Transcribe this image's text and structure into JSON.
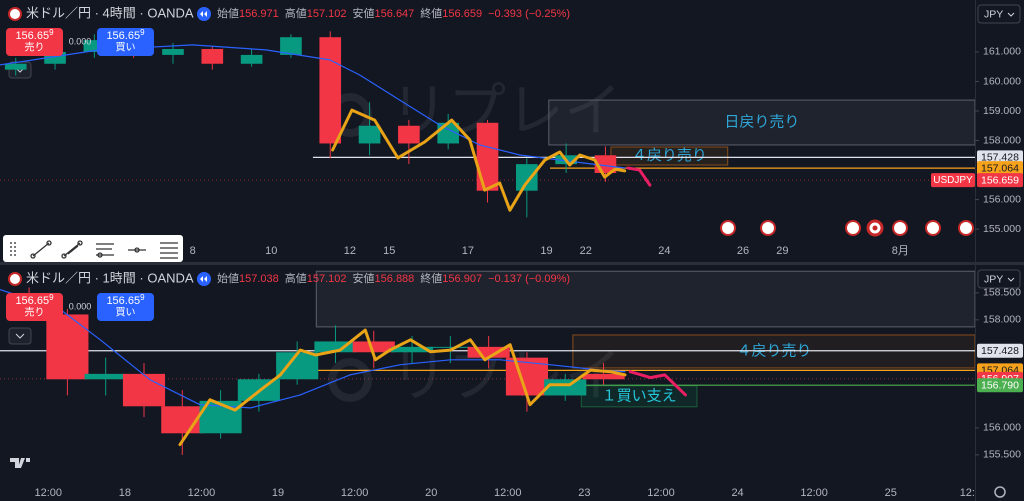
{
  "chart_data": [
    {
      "type": "candlestick",
      "symbol": "米ドル／円 · 4時間 · OANDA",
      "ohlc": [
        {
          "label": "始値",
          "value": 156.971
        },
        {
          "label": "高値",
          "value": 157.102
        },
        {
          "label": "安値",
          "value": 156.647
        },
        {
          "label": "終値",
          "value": 156.659
        }
      ],
      "change": "−0.393 (−0.25%)",
      "sell": {
        "price": "156.65",
        "sup": "9",
        "label": "売り"
      },
      "spread": "0.000",
      "buy": {
        "price": "156.65",
        "sup": "9",
        "label": "買い"
      },
      "currency": "JPY",
      "watermark": "リプレイ",
      "xlim": [
        -4.9,
        19.9
      ],
      "ylim": [
        154.63,
        162.76
      ],
      "xticks": [
        {
          "value": 0,
          "label": "8"
        },
        {
          "value": 2,
          "label": "10"
        },
        {
          "value": 4,
          "label": "12"
        },
        {
          "value": 5,
          "label": "15"
        },
        {
          "value": 7,
          "label": "17"
        },
        {
          "value": 9,
          "label": "19"
        },
        {
          "value": 10,
          "label": "22"
        },
        {
          "value": 12,
          "label": "24"
        },
        {
          "value": 14,
          "label": "26"
        },
        {
          "value": 15,
          "label": "29"
        },
        {
          "value": 18,
          "label": "8月"
        }
      ],
      "yticks": [
        {
          "value": 155,
          "label": "155.000"
        },
        {
          "value": 156,
          "label": "156.000"
        },
        {
          "value": 158,
          "label": "158.000"
        },
        {
          "value": 159,
          "label": "159.000"
        },
        {
          "value": 160,
          "label": "160.000"
        },
        {
          "value": 161,
          "label": "161.000"
        }
      ],
      "grid": false,
      "up_color": "#089981",
      "down_color": "#f23645",
      "candles": {
        "x": [
          -4.5,
          -3.5,
          -2.5,
          -1.5,
          -0.5,
          0.5,
          1.5,
          2.5,
          3.5,
          4.5,
          5.5,
          6.5,
          7.5,
          8.5,
          9.5,
          10.5
        ],
        "open": [
          160.4,
          160.6,
          161.0,
          161.4,
          160.9,
          161.1,
          160.6,
          160.9,
          161.5,
          157.9,
          158.5,
          157.9,
          158.6,
          156.3,
          157.2,
          157.5
        ],
        "high": [
          160.8,
          161.2,
          161.6,
          161.5,
          161.3,
          161.2,
          161.1,
          161.6,
          161.7,
          159.3,
          158.7,
          158.9,
          158.7,
          157.4,
          157.9,
          157.8
        ],
        "low": [
          160.2,
          160.4,
          160.8,
          160.8,
          160.6,
          160.4,
          160.5,
          160.8,
          157.4,
          157.5,
          157.2,
          157.7,
          155.9,
          155.4,
          156.9,
          156.6
        ],
        "close": [
          160.6,
          161.0,
          161.4,
          160.9,
          161.1,
          160.6,
          160.9,
          161.5,
          157.9,
          158.5,
          157.9,
          158.6,
          156.3,
          157.2,
          157.5,
          156.9
        ]
      },
      "series": [
        {
          "color": "#2962ff",
          "width": 1.2,
          "x": [
            -4.91,
            -2.37,
            0,
            1.86,
            3.49,
            4.25,
            5.27,
            6.28,
            7.3,
            8.32,
            9.34,
            10.36,
            10.99
          ],
          "values": [
            160.56,
            161.07,
            161.24,
            161.07,
            160.73,
            160.22,
            159.37,
            158.53,
            157.85,
            157.51,
            157.34,
            157.17,
            157.07
          ]
        },
        {
          "color": "#e8a317",
          "width": 3,
          "x": [
            3.56,
            4.05,
            4.63,
            5.22,
            5.9,
            6.59,
            7.05,
            7.43,
            7.81,
            8.07,
            8.45,
            8.96,
            9.34,
            9.59,
            9.85,
            10.23,
            10.48,
            10.74,
            10.99
          ],
          "values": [
            157.68,
            159.03,
            158.69,
            157.41,
            157.95,
            158.69,
            158.02,
            156.32,
            156.56,
            155.64,
            156.49,
            157.34,
            157.61,
            157.17,
            157.51,
            157.34,
            156.76,
            157.03,
            156.97
          ]
        },
        {
          "color": "#e91e63",
          "width": 3,
          "x": [
            11.07,
            11.37,
            11.63
          ],
          "values": [
            157.07,
            157.0,
            156.49
          ]
        }
      ],
      "zones": [
        {
          "x": [
            9.06,
            19.9
          ],
          "y": [
            157.85,
            159.37
          ],
          "label": "日戻り売り",
          "stroke": "#5d606b",
          "fill": "rgba(120,123,134,0.12)",
          "text_color": "#2ea6d8"
        },
        {
          "x": [
            10.64,
            13.61
          ],
          "y": [
            157.17,
            157.78
          ],
          "label": "４戻り売り",
          "stroke": "#8a4d1a",
          "fill": "rgba(255,152,0,0.08)",
          "text_color": "#2ea6d8"
        }
      ],
      "levels": [
        {
          "value": 157.428,
          "label": "157.428",
          "color": "#e0e3eb",
          "text_color": "#131722",
          "from": 3.06
        },
        {
          "value": 157.064,
          "label": "157.064",
          "color": "#f7a21b",
          "text_color": "#131722",
          "from": 9.09
        },
        {
          "value": 156.659,
          "label": "156.659",
          "color": "#f23645",
          "text_color": "#ffffff",
          "from": -4.9,
          "dashed": true,
          "tag": "USDJPY"
        }
      ]
    },
    {
      "type": "candlestick",
      "symbol": "米ドル／円 · 1時間 · OANDA",
      "ohlc": [
        {
          "label": "始値",
          "value": 157.038
        },
        {
          "label": "高値",
          "value": 157.102
        },
        {
          "label": "安値",
          "value": 156.888
        },
        {
          "label": "終値",
          "value": 156.907
        }
      ],
      "change": "−0.137 (−0.09%)",
      "sell": {
        "price": "156.65",
        "sup": "9",
        "label": "売り"
      },
      "spread": "0.000",
      "buy": {
        "price": "156.65",
        "sup": "9",
        "label": "買い"
      },
      "currency": "JPY",
      "watermark": "リプレイ",
      "xlim": [
        -0.63,
        12.1
      ],
      "ylim": [
        154.85,
        158.96
      ],
      "xticks": [
        {
          "value": 0,
          "label": "12:00"
        },
        {
          "value": 1,
          "label": "18"
        },
        {
          "value": 2,
          "label": "12:00"
        },
        {
          "value": 3,
          "label": "19"
        },
        {
          "value": 4,
          "label": "12:00"
        },
        {
          "value": 5,
          "label": "20"
        },
        {
          "value": 6,
          "label": "12:00"
        },
        {
          "value": 7,
          "label": "23"
        },
        {
          "value": 8,
          "label": "12:00"
        },
        {
          "value": 9,
          "label": "24"
        },
        {
          "value": 10,
          "label": "12:00"
        },
        {
          "value": 11,
          "label": "25"
        },
        {
          "value": 12,
          "label": "12:"
        }
      ],
      "yticks": [
        {
          "value": 155.5,
          "label": "155.500"
        },
        {
          "value": 156,
          "label": "156.000"
        },
        {
          "value": 158,
          "label": "158.000"
        },
        {
          "value": 158.5,
          "label": "158.500"
        }
      ],
      "grid": false,
      "up_color": "#089981",
      "down_color": "#f23645",
      "candles": {
        "x": [
          -0.25,
          0.25,
          0.75,
          1.25,
          1.75,
          2.25,
          2.75,
          3.25,
          3.75,
          4.25,
          4.75,
          5.25,
          5.75,
          6.25,
          6.75,
          7.25
        ],
        "open": [
          158.3,
          158.1,
          156.9,
          157.0,
          156.4,
          155.9,
          156.5,
          156.9,
          157.4,
          157.6,
          157.4,
          157.5,
          157.5,
          157.3,
          156.6,
          157.0
        ],
        "high": [
          158.6,
          158.2,
          157.3,
          157.2,
          156.7,
          156.7,
          157.0,
          157.6,
          157.9,
          157.8,
          157.7,
          157.7,
          157.7,
          157.4,
          157.0,
          157.2
        ],
        "low": [
          158.0,
          156.6,
          156.6,
          156.2,
          155.5,
          155.8,
          156.3,
          156.8,
          157.2,
          157.1,
          157.2,
          157.2,
          157.1,
          156.3,
          156.5,
          156.8
        ],
        "close": [
          158.1,
          156.9,
          157.0,
          156.4,
          155.9,
          156.5,
          156.9,
          157.4,
          157.6,
          157.4,
          157.5,
          157.5,
          157.3,
          156.6,
          156.9,
          156.9
        ]
      },
      "series": [
        {
          "color": "#2962ff",
          "width": 1.2,
          "x": [
            -0.63,
            0.16,
            0.68,
            1.33,
            1.98,
            2.64,
            3.29,
            3.94,
            4.6,
            5.25,
            5.9,
            6.55,
            7.21,
            7.53
          ],
          "values": [
            158.56,
            158.19,
            157.63,
            156.89,
            156.43,
            156.37,
            156.61,
            156.98,
            157.17,
            157.26,
            157.26,
            157.17,
            157.07,
            157.04
          ]
        },
        {
          "color": "#e8a317",
          "width": 3,
          "x": [
            1.72,
            2.11,
            2.44,
            2.77,
            3.03,
            3.29,
            3.49,
            3.81,
            4.14,
            4.27,
            4.46,
            4.73,
            4.99,
            5.25,
            5.51,
            5.7,
            6.03,
            6.29,
            6.55,
            6.81,
            7.08,
            7.34,
            7.53
          ],
          "values": [
            155.69,
            156.52,
            156.33,
            156.7,
            156.98,
            157.44,
            157.35,
            157.44,
            157.81,
            157.26,
            157.44,
            157.63,
            157.41,
            157.44,
            157.63,
            157.26,
            157.54,
            156.43,
            156.8,
            156.8,
            157.07,
            157.04,
            156.98
          ]
        },
        {
          "color": "#e91e63",
          "width": 3,
          "x": [
            7.6,
            7.86,
            8.05,
            8.32
          ],
          "values": [
            157.04,
            156.93,
            156.98,
            156.61
          ]
        }
      ],
      "zones": [
        {
          "x": [
            3.5,
            12.1
          ],
          "y": [
            157.87,
            158.9
          ],
          "stroke": "#5d606b",
          "fill": "rgba(120,123,134,0.12)"
        },
        {
          "x": [
            6.85,
            12.1
          ],
          "y": [
            157.11,
            157.72
          ],
          "label": "４戻り売り",
          "stroke": "#8a4d1a",
          "fill": "rgba(255,152,0,0.06)",
          "text_color": "#2ea6d8"
        },
        {
          "x": [
            6.96,
            8.47
          ],
          "y": [
            156.39,
            156.78
          ],
          "label": "１買い支え",
          "stroke": "#1b5e3b",
          "fill": "rgba(0,150,80,0.15)",
          "text_color": "#26c6da"
        }
      ],
      "levels": [
        {
          "value": 157.428,
          "label": "157.428",
          "color": "#e0e3eb",
          "text_color": "#131722",
          "from": -0.63
        },
        {
          "value": 157.064,
          "label": "157.064",
          "color": "#f7a21b",
          "text_color": "#131722",
          "from": 3.49
        },
        {
          "value": 156.907,
          "label": "156.907",
          "color": "#f23645",
          "text_color": "#ffffff",
          "from": -0.63,
          "dashed": true
        },
        {
          "value": 156.79,
          "label": "156.790",
          "color": "#4caf50",
          "text_color": "#ffffff",
          "from": 6.96
        }
      ]
    }
  ]
}
